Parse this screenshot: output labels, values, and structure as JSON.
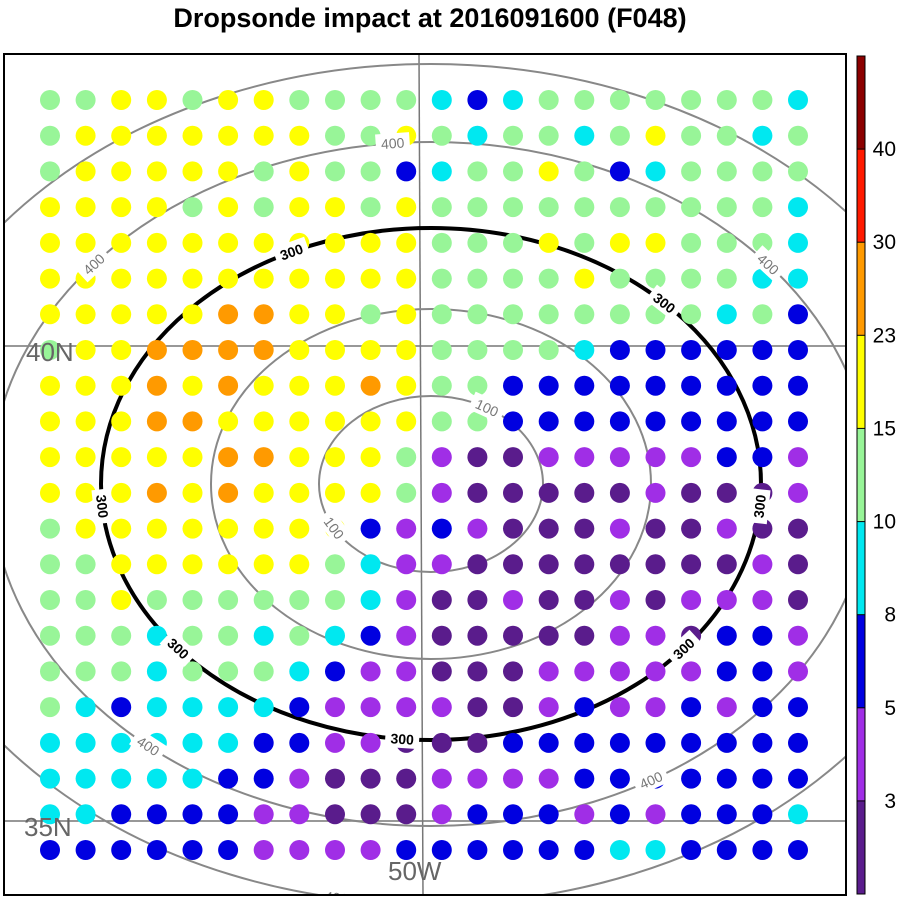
{
  "title": "Dropsonde impact at 2016091600 (F048)",
  "map": {
    "lat_labels": [
      "40N",
      "35N"
    ],
    "lon_labels": [
      "50W"
    ],
    "range_rings": [
      {
        "value": "100",
        "color": "#888888",
        "emphasis": false
      },
      {
        "value": "300",
        "color": "#000000",
        "emphasis": true
      },
      {
        "value": "400",
        "color": "#888888",
        "emphasis": false
      }
    ]
  },
  "colorbar": {
    "tick_labels": [
      "3",
      "5",
      "8",
      "10",
      "15",
      "23",
      "30",
      "40"
    ],
    "colors": [
      "#5a1c8c",
      "#a02ee6",
      "#0000e0",
      "#00e8f0",
      "#98f598",
      "#ffff00",
      "#ff9a00",
      "#ff1a00",
      "#8b0000"
    ]
  },
  "points": {
    "columns": [
      "50W"
    ],
    "color_index_legend": "0=dark purple,1=purple,2=blue,3=cyan,4=light green,5=yellow,6=orange",
    "rows": [
      [
        4,
        4,
        5,
        5,
        4,
        5,
        5,
        4,
        4,
        4,
        4,
        3,
        2,
        3,
        4,
        4,
        4,
        4,
        4,
        4,
        4,
        3
      ],
      [
        4,
        5,
        5,
        5,
        5,
        5,
        5,
        5,
        4,
        4,
        5,
        4,
        3,
        4,
        4,
        3,
        4,
        5,
        4,
        4,
        3,
        4
      ],
      [
        4,
        5,
        5,
        5,
        5,
        5,
        4,
        5,
        4,
        4,
        2,
        3,
        4,
        4,
        5,
        4,
        2,
        3,
        4,
        4,
        4,
        4
      ],
      [
        5,
        5,
        5,
        5,
        4,
        5,
        4,
        5,
        5,
        4,
        5,
        4,
        4,
        4,
        4,
        4,
        4,
        4,
        4,
        4,
        4,
        3
      ],
      [
        5,
        5,
        5,
        5,
        5,
        5,
        5,
        5,
        5,
        5,
        5,
        4,
        4,
        4,
        5,
        4,
        5,
        5,
        4,
        4,
        4,
        3
      ],
      [
        5,
        5,
        5,
        5,
        5,
        5,
        5,
        5,
        5,
        5,
        5,
        4,
        4,
        4,
        4,
        5,
        4,
        4,
        4,
        4,
        3,
        3
      ],
      [
        5,
        5,
        5,
        5,
        5,
        6,
        6,
        5,
        5,
        4,
        5,
        4,
        4,
        4,
        4,
        4,
        4,
        4,
        4,
        3,
        4,
        2
      ],
      [
        4,
        5,
        5,
        6,
        6,
        6,
        6,
        5,
        5,
        5,
        5,
        4,
        4,
        4,
        4,
        3,
        2,
        2,
        2,
        2,
        2,
        2
      ],
      [
        5,
        5,
        5,
        6,
        5,
        6,
        5,
        5,
        5,
        6,
        5,
        4,
        4,
        2,
        2,
        2,
        2,
        2,
        2,
        2,
        2,
        2
      ],
      [
        5,
        5,
        5,
        6,
        6,
        5,
        5,
        5,
        5,
        5,
        5,
        4,
        4,
        2,
        2,
        2,
        2,
        2,
        2,
        2,
        2,
        2
      ],
      [
        5,
        5,
        5,
        5,
        5,
        6,
        6,
        5,
        5,
        5,
        4,
        1,
        0,
        0,
        1,
        1,
        1,
        1,
        1,
        2,
        2,
        1
      ],
      [
        5,
        5,
        5,
        6,
        5,
        6,
        5,
        5,
        5,
        5,
        4,
        1,
        0,
        0,
        0,
        0,
        0,
        1,
        0,
        0,
        0,
        1
      ],
      [
        4,
        5,
        5,
        5,
        5,
        5,
        5,
        5,
        5,
        2,
        1,
        2,
        1,
        0,
        0,
        0,
        1,
        0,
        0,
        1,
        0,
        0
      ],
      [
        4,
        4,
        5,
        5,
        5,
        5,
        5,
        5,
        4,
        3,
        1,
        1,
        0,
        0,
        0,
        0,
        0,
        0,
        0,
        0,
        1,
        0
      ],
      [
        4,
        4,
        5,
        4,
        4,
        4,
        4,
        4,
        4,
        3,
        1,
        0,
        0,
        1,
        0,
        0,
        1,
        0,
        1,
        1,
        1,
        0
      ],
      [
        4,
        4,
        4,
        3,
        4,
        4,
        3,
        4,
        3,
        2,
        1,
        0,
        0,
        0,
        0,
        0,
        1,
        1,
        0,
        2,
        2,
        1
      ],
      [
        4,
        4,
        4,
        3,
        4,
        4,
        4,
        3,
        2,
        1,
        1,
        0,
        0,
        0,
        1,
        1,
        1,
        1,
        1,
        2,
        2,
        1
      ],
      [
        4,
        3,
        2,
        3,
        3,
        3,
        3,
        2,
        1,
        1,
        1,
        1,
        0,
        0,
        1,
        2,
        1,
        1,
        2,
        1,
        2,
        2
      ],
      [
        3,
        3,
        3,
        3,
        3,
        3,
        2,
        2,
        1,
        1,
        0,
        0,
        0,
        2,
        2,
        2,
        2,
        2,
        2,
        2,
        2,
        2
      ],
      [
        3,
        3,
        3,
        3,
        3,
        2,
        2,
        1,
        0,
        0,
        0,
        1,
        1,
        1,
        1,
        2,
        2,
        2,
        2,
        2,
        2,
        2
      ],
      [
        3,
        3,
        2,
        2,
        2,
        2,
        1,
        1,
        0,
        0,
        0,
        1,
        2,
        2,
        2,
        1,
        2,
        1,
        2,
        2,
        2,
        3
      ],
      [
        2,
        2,
        2,
        2,
        2,
        2,
        1,
        1,
        1,
        1,
        2,
        2,
        2,
        2,
        2,
        2,
        3,
        3,
        2,
        2,
        2,
        2
      ]
    ]
  }
}
